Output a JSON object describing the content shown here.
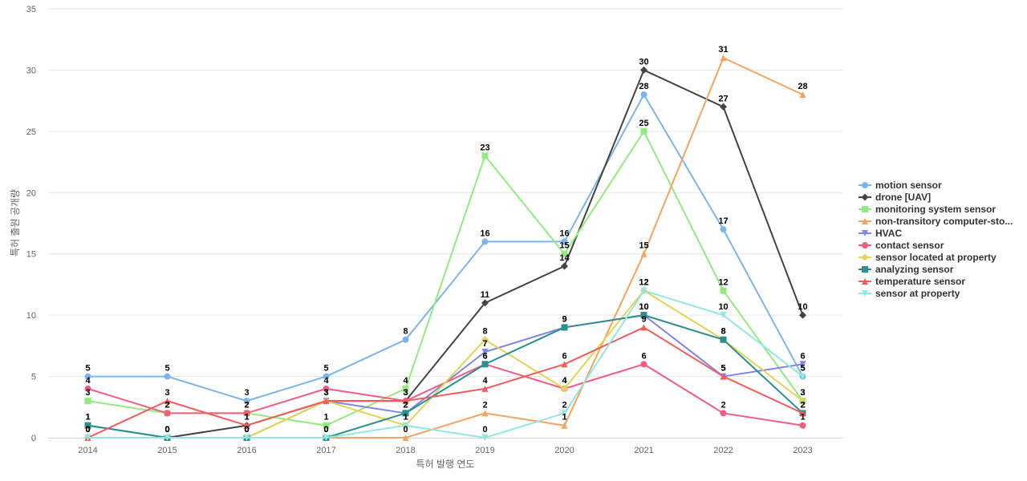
{
  "chart_data": {
    "type": "line",
    "xlabel": "특허 발행 연도",
    "ylabel": "특허 출원 공개량",
    "ylim": [
      0,
      35
    ],
    "yticks": [
      0,
      5,
      10,
      15,
      20,
      25,
      30,
      35
    ],
    "categories": [
      "2014",
      "2015",
      "2016",
      "2017",
      "2018",
      "2019",
      "2020",
      "2021",
      "2022",
      "2023"
    ],
    "grid": true,
    "legend_position": "right",
    "series": [
      {
        "name": "motion sensor",
        "color": "#7cb5ec",
        "marker": "circle",
        "values": [
          5,
          5,
          3,
          5,
          8,
          16,
          16,
          28,
          17,
          5
        ]
      },
      {
        "name": "drone [UAV]",
        "color": "#434348",
        "marker": "diamond",
        "values": [
          0,
          0,
          1,
          3,
          3,
          11,
          14,
          30,
          27,
          10
        ]
      },
      {
        "name": "monitoring system sensor",
        "color": "#90ed7d",
        "marker": "square",
        "values": [
          3,
          2,
          2,
          1,
          4,
          23,
          15,
          25,
          12,
          3
        ]
      },
      {
        "name": "non-transitory computer-sto...",
        "color": "#f7a35c",
        "marker": "triangle",
        "values": [
          0,
          0,
          0,
          0,
          0,
          2,
          1,
          15,
          31,
          28
        ]
      },
      {
        "name": "HVAC",
        "color": "#8085e9",
        "marker": "triangle-down",
        "values": [
          1,
          0,
          0,
          3,
          2,
          7,
          9,
          10,
          5,
          6
        ]
      },
      {
        "name": "contact sensor",
        "color": "#f15c80",
        "marker": "circle",
        "values": [
          4,
          2,
          2,
          4,
          3,
          6,
          4,
          6,
          2,
          1
        ]
      },
      {
        "name": "sensor located at property",
        "color": "#e4d354",
        "marker": "diamond",
        "values": [
          0,
          0,
          0,
          3,
          1,
          8,
          4,
          12,
          8,
          3
        ]
      },
      {
        "name": "analyzing sensor",
        "color": "#2b908f",
        "marker": "square",
        "values": [
          1,
          0,
          0,
          0,
          2,
          6,
          9,
          10,
          8,
          2
        ]
      },
      {
        "name": "temperature sensor",
        "color": "#f45b5b",
        "marker": "triangle",
        "values": [
          0,
          3,
          1,
          3,
          3,
          4,
          6,
          9,
          5,
          2
        ]
      },
      {
        "name": "sensor at property",
        "color": "#91e8e1",
        "marker": "triangle-down",
        "values": [
          0,
          0,
          0,
          0,
          1,
          0,
          2,
          12,
          10,
          5
        ]
      }
    ]
  }
}
